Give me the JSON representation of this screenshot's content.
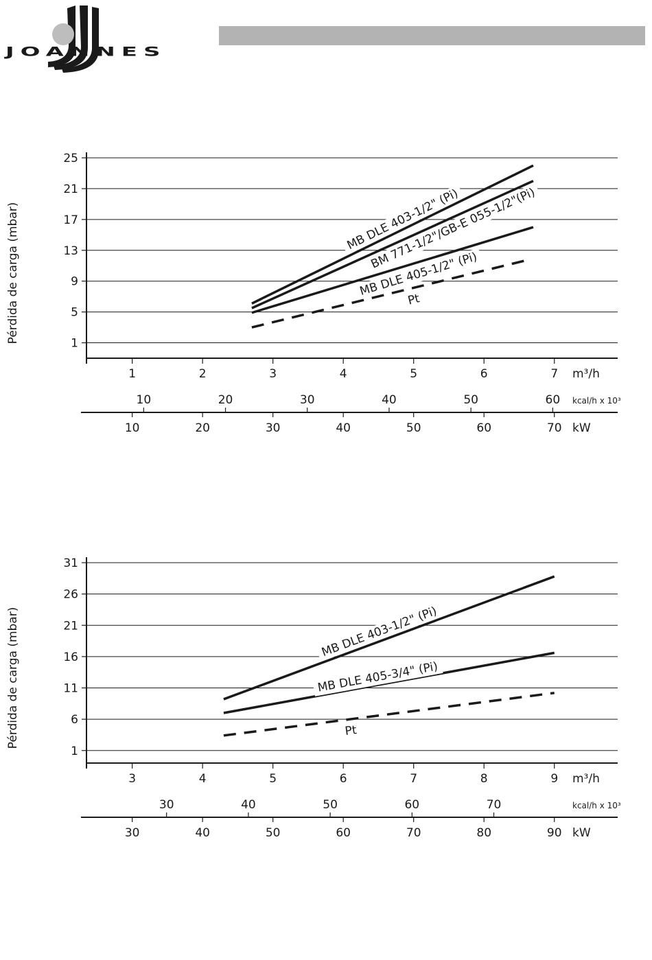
{
  "header": {
    "brand": "Joannes"
  },
  "charts": [
    {
      "ylabel": "Pérdida de carga (mbar)",
      "flow_unit": "m³/h",
      "kcal_unit": "kcal/h x 10³",
      "kw_unit": "kW"
    },
    {
      "ylabel": "Pérdida de carga (mbar)",
      "flow_unit": "m³/h",
      "kcal_unit": "kcal/h x 10³",
      "kw_unit": "kW"
    }
  ],
  "chart_data": [
    {
      "type": "line",
      "title": "",
      "ylabel": "Pérdida de carga (mbar)",
      "xlabel": "m³/h",
      "ylim": [
        -1,
        25
      ],
      "xlim": [
        0.35,
        7.9
      ],
      "yticks": [
        1,
        5,
        9,
        13,
        17,
        21,
        25
      ],
      "xticks": [
        1,
        2,
        3,
        4,
        5,
        6,
        7
      ],
      "kcal_ticks": [
        10,
        20,
        30,
        40,
        50,
        60
      ],
      "kw_ticks": [
        10,
        20,
        30,
        40,
        50,
        60,
        70
      ],
      "grid": true,
      "series": [
        {
          "name": "MB DLE 403-1/2\" (Pi)",
          "x": [
            2.7,
            6.7
          ],
          "y": [
            6.1,
            24.0
          ],
          "dashed": false,
          "label_at": 0.55,
          "label_offset": -14
        },
        {
          "name": "BM 771-1/2\"/GB-E 055-1/2\"(Pi)",
          "x": [
            2.7,
            6.7
          ],
          "y": [
            5.5,
            22.0
          ],
          "dashed": false,
          "label_at": 0.7,
          "label_offset": 14
        },
        {
          "name": "MB DLE 405-1/2\" (Pi)",
          "x": [
            2.7,
            6.7
          ],
          "y": [
            4.9,
            16.0
          ],
          "dashed": false,
          "label_at": 0.58,
          "label_offset": 16
        },
        {
          "name": "Pt",
          "x": [
            2.7,
            6.6
          ],
          "y": [
            3.0,
            11.7
          ],
          "dashed": true,
          "label_at": 0.58,
          "label_offset": 16
        }
      ]
    },
    {
      "type": "line",
      "title": "",
      "ylabel": "Pérdida de carga (mbar)",
      "xlabel": "m³/h",
      "ylim": [
        -1,
        31
      ],
      "xlim": [
        2.35,
        9.9
      ],
      "yticks": [
        1,
        6,
        11,
        16,
        21,
        26,
        31
      ],
      "xticks": [
        3,
        4,
        5,
        6,
        7,
        8,
        9
      ],
      "kcal_ticks": [
        30,
        40,
        50,
        60,
        70
      ],
      "kw_ticks": [
        30,
        40,
        50,
        60,
        70,
        80,
        90
      ],
      "grid": true,
      "series": [
        {
          "name": "MB DLE 403-1/2\" (Pi)",
          "x": [
            4.3,
            9.0
          ],
          "y": [
            9.2,
            28.8
          ],
          "dashed": false,
          "label_at": 0.48,
          "label_offset": -14
        },
        {
          "name": "MB DLE 405-3/4\" (Pi)",
          "x": [
            4.3,
            9.0
          ],
          "y": [
            7.0,
            16.6
          ],
          "dashed": false,
          "label_at": 0.47,
          "label_offset": -12
        },
        {
          "name": "Pt",
          "x": [
            4.3,
            9.0
          ],
          "y": [
            3.4,
            10.2
          ],
          "dashed": true,
          "label_at": 0.38,
          "label_offset": 16
        }
      ]
    }
  ]
}
